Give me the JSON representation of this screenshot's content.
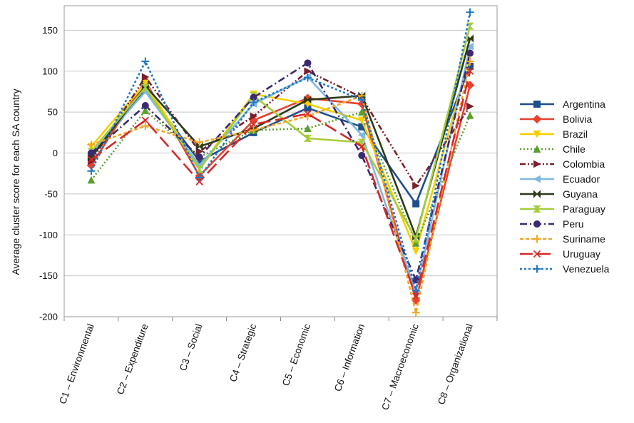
{
  "chart_data": {
    "type": "line",
    "title": "",
    "xlabel": "",
    "ylabel": "Average cluster score for each SA country",
    "ylim": [
      -200,
      180
    ],
    "yticks": [
      -200,
      -150,
      -100,
      -50,
      0,
      50,
      100,
      150
    ],
    "grid": true,
    "legend_position": "right",
    "categories": [
      "C1 – Environmental",
      "C2 – Expenditure",
      "C3 – Social",
      "C4 – Strategic",
      "C5 – Economic",
      "C6 – Information",
      "C7 – Macroeconomic",
      "C8 – Organizational"
    ],
    "series": [
      {
        "name": "Argentina",
        "color": "#1f4e8c",
        "dash": "",
        "marker": "square",
        "values": [
          -5,
          78,
          -10,
          25,
          55,
          32,
          -62,
          106
        ]
      },
      {
        "name": "Bolivia",
        "color": "#e8412c",
        "dash": "",
        "marker": "diamond",
        "values": [
          -15,
          88,
          -28,
          40,
          67,
          60,
          -180,
          83
        ]
      },
      {
        "name": "Brazil",
        "color": "#f5d000",
        "dash": "",
        "marker": "triangle-down",
        "values": [
          8,
          85,
          -18,
          72,
          60,
          40,
          -120,
          120
        ]
      },
      {
        "name": "Chile",
        "color": "#5aa02c",
        "dash": "2,3",
        "marker": "triangle-up",
        "values": [
          -33,
          52,
          -5,
          28,
          30,
          50,
          -110,
          46
        ]
      },
      {
        "name": "Colombia",
        "color": "#7a1f2b",
        "dash": "8,3,2,3,2,3",
        "marker": "triangle-right",
        "values": [
          -10,
          93,
          2,
          45,
          100,
          68,
          -40,
          57
        ]
      },
      {
        "name": "Ecuador",
        "color": "#7fb8e0",
        "dash": "",
        "marker": "triangle-left",
        "values": [
          0,
          75,
          -15,
          60,
          93,
          22,
          -170,
          130
        ]
      },
      {
        "name": "Guyana",
        "color": "#2d3a1a",
        "dash": "",
        "marker": "bowtie",
        "values": [
          -5,
          82,
          8,
          30,
          65,
          70,
          -102,
          140
        ]
      },
      {
        "name": "Paraguay",
        "color": "#a6cc3c",
        "dash": "",
        "marker": "hourglass",
        "values": [
          2,
          80,
          -20,
          70,
          18,
          13,
          -105,
          155
        ]
      },
      {
        "name": "Peru",
        "color": "#3b2a6e",
        "dash": "10,4,2,4",
        "marker": "circle",
        "values": [
          0,
          58,
          -5,
          68,
          110,
          -3,
          -155,
          122
        ]
      },
      {
        "name": "Suriname",
        "color": "#f5a623",
        "dash": "5,3",
        "marker": "plus",
        "values": [
          10,
          33,
          13,
          28,
          45,
          70,
          -195,
          112
        ]
      },
      {
        "name": "Uruguay",
        "color": "#d62728",
        "dash": "18,7",
        "marker": "x",
        "values": [
          -8,
          40,
          -35,
          35,
          48,
          8,
          -175,
          100
        ]
      },
      {
        "name": "Venezuela",
        "color": "#1f77c4",
        "dash": "3,3",
        "marker": "plus",
        "values": [
          -22,
          112,
          -30,
          62,
          92,
          65,
          -168,
          172
        ]
      }
    ]
  }
}
